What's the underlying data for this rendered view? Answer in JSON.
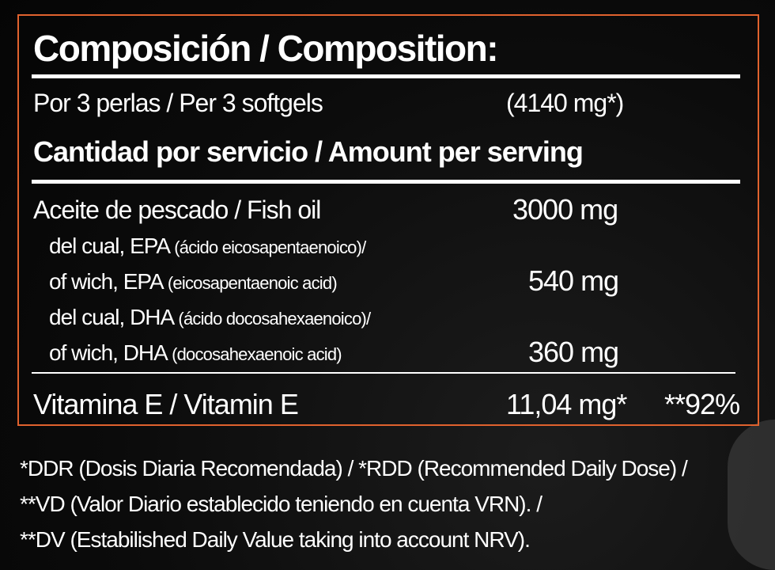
{
  "title": "Composición / Composition:",
  "serving": {
    "label": "Por 3 perlas / Per 3 softgels",
    "weight": "(4140 mg*)"
  },
  "amount_header": "Cantidad por servicio / Amount per serving",
  "rows": [
    {
      "label": "Aceite de pescado / Fish oil",
      "value": "3000 mg"
    },
    {
      "label_main": "del cual, EPA",
      "label_detail": "(ácido eicosapentaenoico)/"
    },
    {
      "label_main": "of wich, EPA",
      "label_detail": "(eicosapentaenoic acid)",
      "value": "540 mg"
    },
    {
      "label_main": "del cual, DHA",
      "label_detail": "(ácido docosahexaenoico)/"
    },
    {
      "label_main": "of wich, DHA",
      "label_detail": "(docosahexaenoic acid)",
      "value": "360 mg"
    }
  ],
  "vitamin": {
    "label": "Vitamina E  /  Vitamin E",
    "value": "11,04 mg*",
    "dv": "**92%"
  },
  "footnotes": [
    "*DDR (Dosis Diaria Recomendada) / *RDD (Recommended Daily Dose) /",
    "**VD (Valor Diario establecido teniendo en cuenta VRN). /",
    "**DV (Estabilished Daily Value taking into account NRV)."
  ],
  "colors": {
    "border": "#e0622e",
    "background": "#0b0b0b",
    "text": "#ffffff"
  }
}
